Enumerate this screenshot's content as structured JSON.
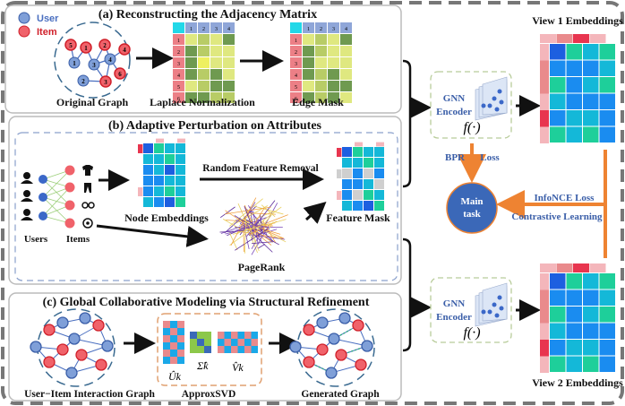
{
  "legend": {
    "user_label": "User",
    "item_label": "Item",
    "node_number": "1"
  },
  "panel_a": {
    "title": "(a) Reconstructing the Adjacency Matrix",
    "original_graph_label": "Original Graph",
    "laplace_label": "Laplace Normalization",
    "edge_mask_label": "Edge Mask",
    "column_headers": [
      "1",
      "2",
      "3",
      "4"
    ],
    "row_headers": [
      "1",
      "2",
      "3",
      "4",
      "5",
      "6"
    ],
    "graph_users": [
      "1",
      "2",
      "3",
      "4"
    ],
    "graph_items": [
      "1",
      "2",
      "3",
      "4",
      "5",
      "6"
    ]
  },
  "panel_b": {
    "title": "(b) Adaptive Perturbation on Attributes",
    "users_label": "Users",
    "items_label": "Items",
    "node_embeddings_label": "Node Embeddings",
    "random_feature_removal_label": "Random Feature Removal",
    "feature_mask_label": "Feature Mask",
    "pagerank_label": "PageRank"
  },
  "panel_c": {
    "title": "(c) Global Collaborative Modeling via Structural Refinement",
    "interaction_graph_label": "User−Item Interaction Graph",
    "approxsvd_label": "ApproxSVD",
    "generated_graph_label": "Generated Graph",
    "u_label": "Ûk",
    "sigma_label": "Σ̂k",
    "v_label": "V̂k"
  },
  "right": {
    "view1_label": "View 1 Embeddings",
    "view2_label": "View 2 Embeddings",
    "encoder1": {
      "line1": "GNN",
      "line2": "Encoder",
      "func": "f(·)"
    },
    "encoder2": {
      "line1": "GNN",
      "line2": "Encoder",
      "func": "f(·)"
    },
    "bpr_label": "BPR",
    "loss_label": "Loss",
    "main_task_line1": "Main",
    "main_task_line2": "task",
    "infonce_label": "InfoNCE Loss",
    "contrastive_label": "Contrastive Learning"
  },
  "colors": {
    "user": "#7f9fd8",
    "item": "#f0626a",
    "item_stroke": "#d0202a",
    "orange": "#ee8332",
    "main_task": "#3b68b8",
    "text_blue": "#3a5ea8",
    "pink": "#f4b6bb",
    "salmon": "#e98a8c",
    "red": "#e8354f",
    "dblue": "#1d5fe0",
    "blue": "#1a8cf0",
    "cyan": "#14b8d8",
    "green": "#1ecf9a",
    "grey": "#cfcfcf",
    "lg": "#dfe880",
    "lm": "#b8cc66",
    "dg": "#6f9a50",
    "yl": "#eef060"
  },
  "matrices": {
    "laplace": [
      [
        "lg",
        "lm",
        "lg",
        "dg"
      ],
      [
        "dg",
        "lm",
        "lg",
        "lg"
      ],
      [
        "dg",
        "yl",
        "lg",
        "lg"
      ],
      [
        "dg",
        "lm",
        "dg",
        "lg"
      ],
      [
        "lg",
        "lm",
        "dg",
        "dg"
      ],
      [
        "dg",
        "dg",
        "lm",
        "lm"
      ]
    ],
    "edge_mask": [
      [
        "lg",
        "lm",
        "lg",
        "dg"
      ],
      [
        "dg",
        "lm",
        "lg",
        "lg"
      ],
      [
        "dg",
        "lg",
        "lg",
        "lg"
      ],
      [
        "dg",
        "lm",
        "dg",
        "lg"
      ],
      [
        "lg",
        "lm",
        "dg",
        "dg"
      ],
      [
        "dg",
        "lm",
        "dg",
        "lg"
      ]
    ],
    "node_embeddings": [
      [
        "dblue",
        "green",
        "cyan",
        "cyan"
      ],
      [
        "cyan",
        "cyan",
        "green",
        "cyan"
      ],
      [
        "blue",
        "cyan",
        "dblue",
        "cyan"
      ],
      [
        "blue",
        "blue",
        "cyan",
        "cyan"
      ],
      [
        "blue",
        "cyan",
        "green",
        "cyan"
      ],
      [
        "cyan",
        "blue",
        "dblue",
        "green"
      ]
    ],
    "feature_mask": [
      [
        "dblue",
        "green",
        "cyan",
        "cyan"
      ],
      [
        "cyan",
        "cyan",
        "green",
        "cyan"
      ],
      [
        "grey",
        "blue",
        "grey",
        "blue"
      ],
      [
        "blue",
        "blue",
        "cyan",
        "grey"
      ],
      [
        "blue",
        "grey",
        "green",
        "cyan"
      ],
      [
        "cyan",
        "blue",
        "dblue",
        "green"
      ]
    ],
    "view": [
      [
        "dblue",
        "green",
        "cyan",
        "green"
      ],
      [
        "blue",
        "blue",
        "blue",
        "cyan"
      ],
      [
        "green",
        "blue",
        "cyan",
        "green"
      ],
      [
        "cyan",
        "blue",
        "blue",
        "blue"
      ],
      [
        "blue",
        "cyan",
        "cyan",
        "blue"
      ],
      [
        "green",
        "cyan",
        "green",
        "blue"
      ]
    ],
    "view_top": [
      "pink",
      "salmon",
      "red",
      "pink"
    ],
    "view_left": [
      "pink",
      "salmon",
      "salmon",
      "pink",
      "red",
      "pink"
    ]
  }
}
